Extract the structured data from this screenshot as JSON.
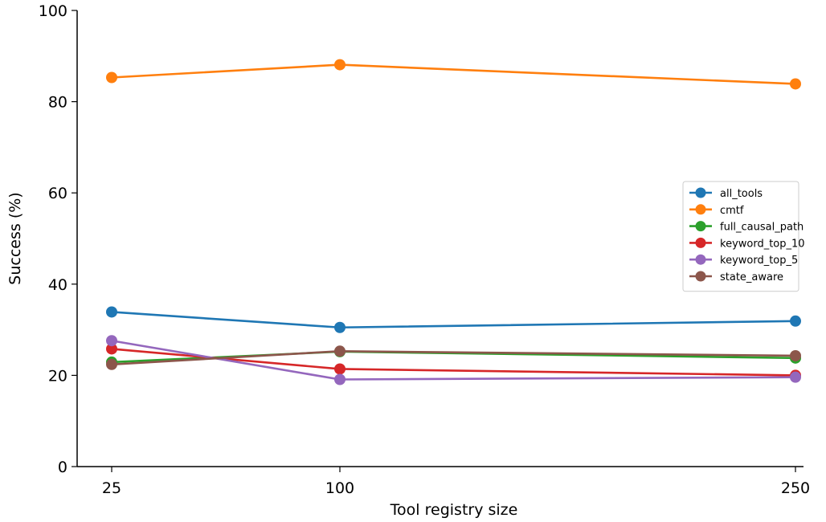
{
  "chart_data": {
    "type": "line",
    "title": "",
    "xlabel": "Tool registry size",
    "ylabel": "Success (%)",
    "x_scale": "log",
    "x": [
      25,
      100,
      250
    ],
    "x_tick_labels": [
      "25",
      "100",
      "250"
    ],
    "ylim": [
      0,
      100
    ],
    "y_ticks": [
      0,
      20,
      40,
      60,
      80,
      100
    ],
    "grid": false,
    "legend_position": "center-right",
    "series": [
      {
        "name": "all_tools",
        "color": "#1f77b4",
        "values": [
          33.9,
          30.5,
          31.9
        ]
      },
      {
        "name": "cmtf",
        "color": "#ff7f0e",
        "values": [
          85.3,
          88.1,
          83.9
        ]
      },
      {
        "name": "full_causal_path",
        "color": "#2ca02c",
        "values": [
          22.9,
          25.2,
          23.8
        ]
      },
      {
        "name": "keyword_top_10",
        "color": "#d62728",
        "values": [
          25.8,
          21.4,
          20.0
        ]
      },
      {
        "name": "keyword_top_5",
        "color": "#9467bd",
        "values": [
          27.6,
          19.1,
          19.6
        ]
      },
      {
        "name": "state_aware",
        "color": "#8c564b",
        "values": [
          22.4,
          25.3,
          24.3
        ]
      }
    ]
  }
}
